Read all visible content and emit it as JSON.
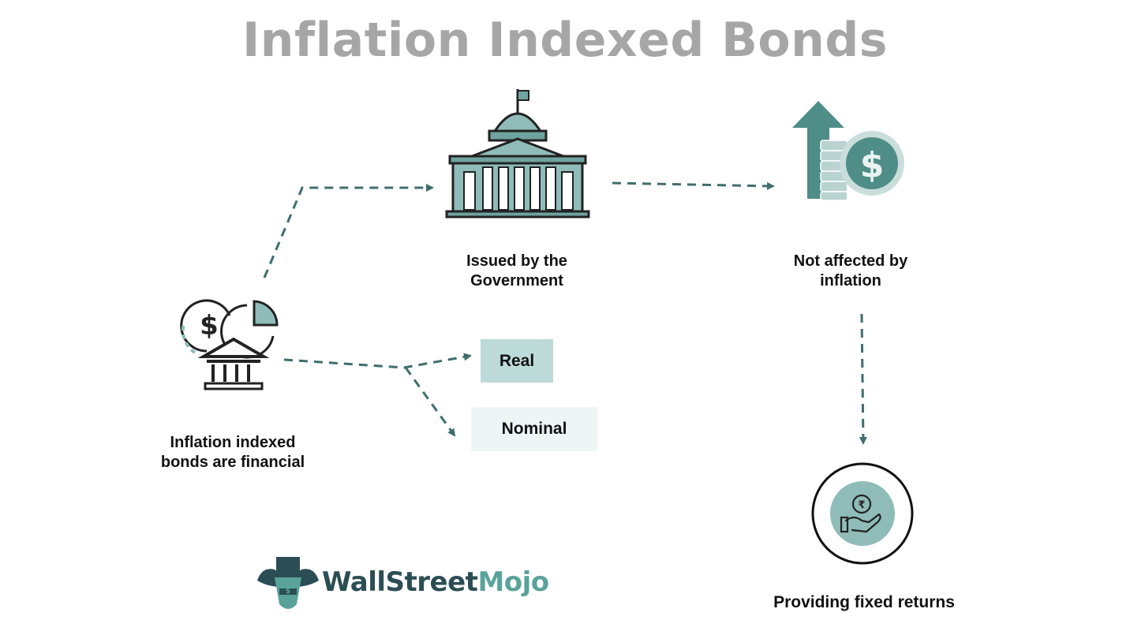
{
  "title": "Inflation Indexed Bonds",
  "nodes": {
    "government": "Issued by the Government",
    "inflation": "Not affected by inflation",
    "financial": "Inflation indexed bonds are financial",
    "returns": "Providing fixed returns"
  },
  "types": {
    "real": "Real",
    "nominal": "Nominal"
  },
  "brand": {
    "part1": "WallStreet",
    "part2": "Mojo"
  },
  "icons": [
    "capitol-building-icon",
    "arrow-up-coins-icon",
    "finance-bank-icon",
    "hand-rupee-icon",
    "bull-logo-icon"
  ],
  "colors": {
    "title": "#a6a6a6",
    "accent": "#3f6e6b",
    "icon_light": "#8fbcb8",
    "box_real": "#bcdad7",
    "box_nominal": "#eef6f5",
    "brand_dark": "#2b4e54",
    "brand_light": "#5aa39a"
  }
}
